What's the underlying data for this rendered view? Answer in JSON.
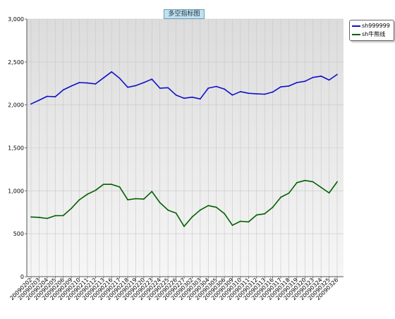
{
  "chart_data": {
    "type": "line",
    "title": "多空指标图",
    "ylim": [
      0,
      3000
    ],
    "yticks": [
      "0",
      "500",
      "1,000",
      "1,500",
      "2,000",
      "2,500",
      "3,000"
    ],
    "ytick_values": [
      0,
      500,
      1000,
      1500,
      2000,
      2500,
      3000
    ],
    "grid": true,
    "legend_position": "top-right",
    "x": [
      "20090202",
      "20090203",
      "20090204",
      "20090205",
      "20090206",
      "20090209",
      "20090210",
      "20090211",
      "20090212",
      "20090213",
      "20090216",
      "20090217",
      "20090218",
      "20090219",
      "20090220",
      "20090223",
      "20090224",
      "20090225",
      "20090226",
      "20090227",
      "20090302",
      "20090303",
      "20090304",
      "20090305",
      "20090306",
      "20090309",
      "20090310",
      "20090311",
      "20090312",
      "20090313",
      "20090316",
      "20090317",
      "20090318",
      "20090319",
      "20090320",
      "20090323",
      "20090324",
      "20090325",
      "20090326"
    ],
    "series": [
      {
        "name": "sh999999",
        "color": "#1010c8",
        "values": [
          2011,
          2055,
          2100,
          2095,
          2175,
          2220,
          2260,
          2255,
          2245,
          2315,
          2385,
          2310,
          2205,
          2225,
          2260,
          2300,
          2195,
          2200,
          2115,
          2078,
          2090,
          2070,
          2195,
          2215,
          2185,
          2115,
          2155,
          2135,
          2130,
          2125,
          2150,
          2210,
          2220,
          2260,
          2275,
          2320,
          2335,
          2290,
          2355
        ]
      },
      {
        "name": "sh牛熊线",
        "color": "#006000",
        "values": [
          695,
          690,
          678,
          710,
          712,
          795,
          895,
          960,
          1005,
          1075,
          1075,
          1045,
          895,
          908,
          903,
          992,
          862,
          775,
          740,
          585,
          695,
          775,
          828,
          808,
          735,
          598,
          645,
          638,
          718,
          732,
          808,
          925,
          972,
          1095,
          1120,
          1105,
          1040,
          975,
          1105
        ]
      }
    ]
  }
}
